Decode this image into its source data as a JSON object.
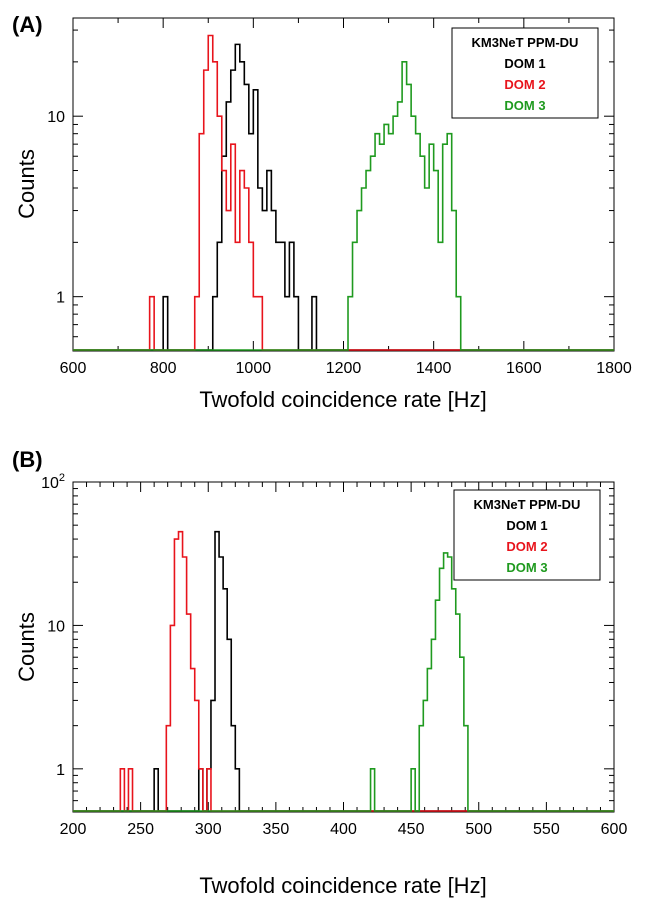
{
  "colors": {
    "dom1": "#000000",
    "dom2": "#e8141c",
    "dom3": "#1f9a1f"
  },
  "chart_data": [
    {
      "panel_label": "(A)",
      "type": "histogram",
      "xlabel": "Twofold coincidence rate [Hz]",
      "ylabel": "Counts",
      "xlim": [
        600,
        1800
      ],
      "ylim": [
        0.5,
        35
      ],
      "yscale": "log",
      "x_ticks": [
        "600",
        "800",
        "1000",
        "1200",
        "1400",
        "1600",
        "1800"
      ],
      "y_ticks": [
        "1",
        "10"
      ],
      "legend": {
        "title": "KM3NeT PPM-DU",
        "placement": "top-right",
        "entries": [
          "DOM 1",
          "DOM 2",
          "DOM 3"
        ]
      },
      "series": [
        {
          "name": "DOM 1",
          "color": "#000000",
          "bin_width": 10,
          "x": [
            800,
            910,
            920,
            930,
            940,
            950,
            960,
            970,
            980,
            990,
            1000,
            1010,
            1020,
            1030,
            1040,
            1050,
            1060,
            1070,
            1080,
            1090,
            1130
          ],
          "counts": [
            1,
            1,
            2,
            6,
            12,
            18,
            25,
            20,
            15,
            8,
            14,
            4,
            3,
            5,
            3,
            2,
            2,
            1,
            2,
            1,
            1
          ]
        },
        {
          "name": "DOM 2",
          "color": "#e8141c",
          "bin_width": 10,
          "x": [
            770,
            870,
            880,
            890,
            900,
            910,
            920,
            930,
            940,
            950,
            960,
            970,
            980,
            990,
            1000,
            1010
          ],
          "counts": [
            1,
            1,
            8,
            18,
            28,
            20,
            10,
            5,
            3,
            7,
            2,
            5,
            4,
            2,
            1,
            1
          ]
        },
        {
          "name": "DOM 3",
          "color": "#1f9a1f",
          "bin_width": 10,
          "x": [
            1210,
            1220,
            1230,
            1240,
            1250,
            1260,
            1270,
            1280,
            1290,
            1300,
            1310,
            1320,
            1330,
            1340,
            1350,
            1360,
            1370,
            1380,
            1390,
            1400,
            1410,
            1420,
            1430,
            1440,
            1450
          ],
          "counts": [
            1,
            2,
            3,
            4,
            5,
            6,
            8,
            7,
            9,
            8,
            10,
            12,
            20,
            15,
            10,
            8,
            6,
            4,
            7,
            5,
            2,
            7,
            8,
            3,
            1
          ]
        }
      ]
    },
    {
      "panel_label": "(B)",
      "type": "histogram",
      "xlabel": "Twofold coincidence rate [Hz]",
      "ylabel": "Counts",
      "xlim": [
        200,
        600
      ],
      "ylim": [
        0.5,
        100
      ],
      "yscale": "log",
      "x_ticks": [
        "200",
        "250",
        "300",
        "350",
        "400",
        "450",
        "500",
        "550",
        "600"
      ],
      "y_ticks": [
        "1",
        "10",
        "10^2"
      ],
      "legend": {
        "title": "KM3NeT PPM-DU",
        "placement": "top-right",
        "entries": [
          "DOM 1",
          "DOM 2",
          "DOM 3"
        ]
      },
      "series": [
        {
          "name": "DOM 1",
          "color": "#000000",
          "bin_width": 3,
          "x": [
            260,
            293,
            299,
            302,
            305,
            308,
            311,
            314,
            317,
            320
          ],
          "counts": [
            1,
            1,
            1,
            3,
            45,
            30,
            18,
            8,
            2,
            1
          ]
        },
        {
          "name": "DOM 2",
          "color": "#e8141c",
          "bin_width": 3,
          "x": [
            235,
            241,
            269,
            272,
            275,
            278,
            281,
            284,
            287,
            290,
            293,
            299
          ],
          "counts": [
            1,
            1,
            2,
            10,
            40,
            45,
            30,
            12,
            5,
            3,
            1,
            1
          ]
        },
        {
          "name": "DOM 3",
          "color": "#1f9a1f",
          "bin_width": 3,
          "x": [
            420,
            450,
            456,
            459,
            462,
            465,
            468,
            471,
            474,
            477,
            480,
            483,
            486,
            489
          ],
          "counts": [
            1,
            1,
            2,
            3,
            5,
            8,
            15,
            25,
            32,
            30,
            18,
            12,
            6,
            2
          ]
        }
      ]
    }
  ]
}
